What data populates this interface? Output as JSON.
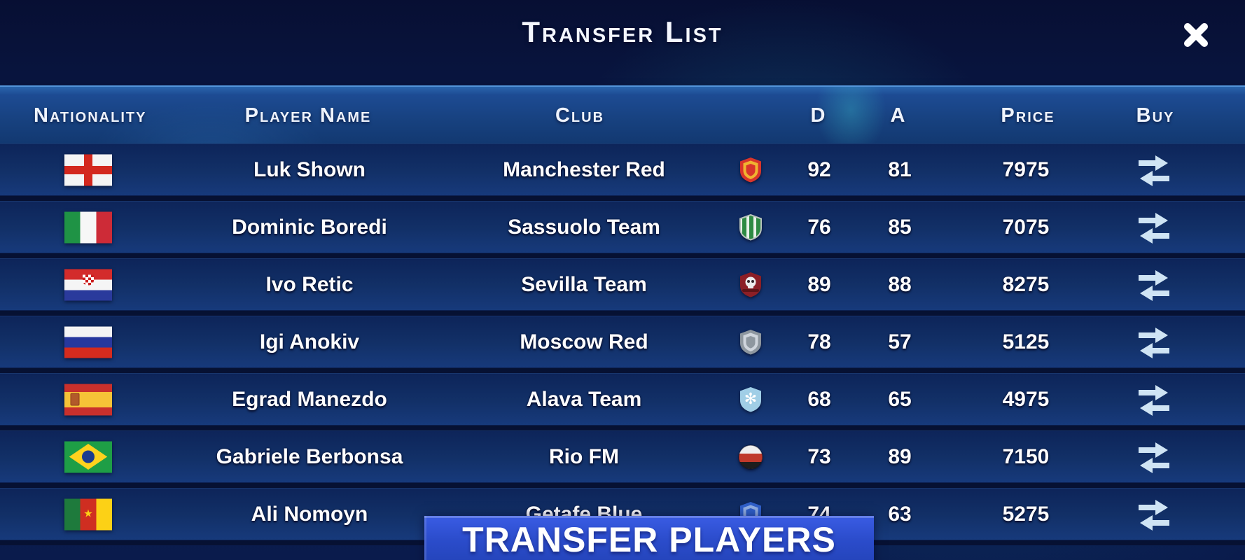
{
  "title": "Transfer List",
  "columns": {
    "nationality": "Nationality",
    "player_name": "Player Name",
    "club": "Club",
    "d": "D",
    "a": "A",
    "price": "Price",
    "buy": "Buy"
  },
  "rows": [
    {
      "nationality": "England",
      "flag": "england",
      "player_name": "Luk Shown",
      "club": "Manchester Red",
      "badge": {
        "type": "crest",
        "primary": "#d8352b",
        "secondary": "#f3c231"
      },
      "d": "92",
      "a": "81",
      "price": "7975"
    },
    {
      "nationality": "Italy",
      "flag": "italy",
      "player_name": "Dominic Boredi",
      "club": "Sassuolo Team",
      "badge": {
        "type": "stripes",
        "primary": "#2c8a42",
        "secondary": "#e9f2ea"
      },
      "d": "76",
      "a": "85",
      "price": "7075"
    },
    {
      "nationality": "Croatia",
      "flag": "croatia",
      "player_name": "Ivo Retic",
      "club": "Sevilla Team",
      "badge": {
        "type": "skull",
        "primary": "#8c1f26",
        "secondary": "#ececec"
      },
      "d": "89",
      "a": "88",
      "price": "8275"
    },
    {
      "nationality": "Russia",
      "flag": "russia",
      "player_name": "Igi Anokiv",
      "club": "Moscow Red",
      "badge": {
        "type": "crest",
        "primary": "#8e979f",
        "secondary": "#d6dce2"
      },
      "d": "78",
      "a": "57",
      "price": "5125"
    },
    {
      "nationality": "Spain",
      "flag": "spain",
      "player_name": "Egrad Manezdo",
      "club": "Alava Team",
      "badge": {
        "type": "snow",
        "primary": "#a9d8f0",
        "secondary": "#ffffff"
      },
      "d": "68",
      "a": "65",
      "price": "4975"
    },
    {
      "nationality": "Brazil",
      "flag": "brazil",
      "player_name": "Gabriele Berbonsa",
      "club": "Rio FM",
      "badge": {
        "type": "ball",
        "primary": "#c0392b",
        "secondary": "#efefef",
        "tertiary": "#1d1d1d"
      },
      "d": "73",
      "a": "89",
      "price": "7150"
    },
    {
      "nationality": "Cameroon",
      "flag": "cameroon",
      "player_name": "Ali Nomoyn",
      "club": "Getafe Blue",
      "badge": {
        "type": "crest",
        "primary": "#2f5fc9",
        "secondary": "#9cb7e6"
      },
      "d": "74",
      "a": "63",
      "price": "5275"
    }
  ],
  "banner": {
    "label": "TRANSFER PLAYERS"
  },
  "colors": {
    "background_navy": "#0a1a4a",
    "header_blue": "#1d4b93",
    "row_blue": "#123067",
    "banner_blue": "#2b4ccb",
    "buy_icon": "#cfe4f4",
    "teal_glow": "#22a0b4"
  }
}
